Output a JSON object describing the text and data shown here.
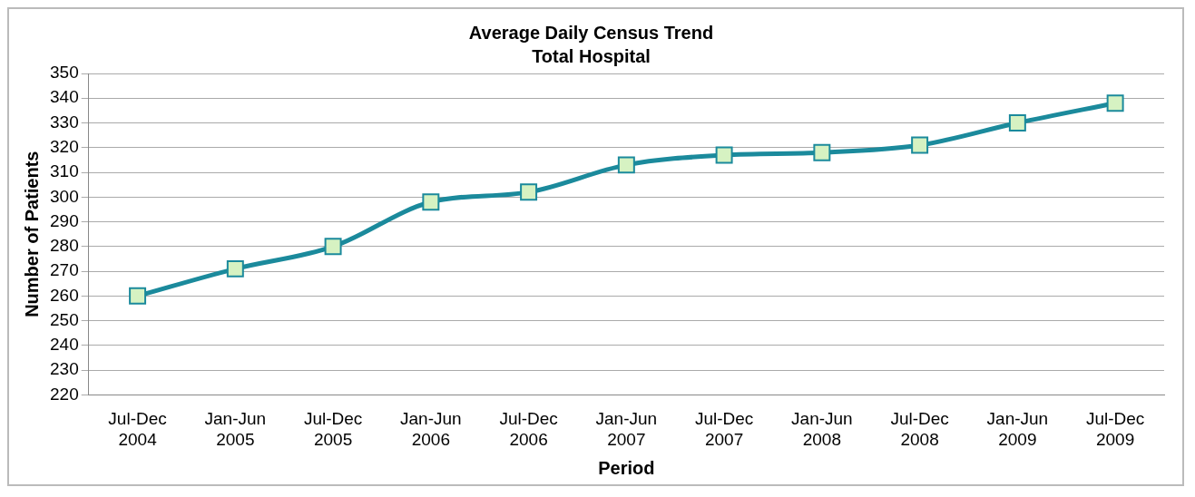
{
  "chart_data": {
    "type": "line",
    "title": "Average Daily Census Trend",
    "subtitle": "Total Hospital",
    "xlabel": "Period",
    "ylabel": "Number of Patients",
    "categories": [
      "Jul-Dec 2004",
      "Jan-Jun 2005",
      "Jul-Dec 2005",
      "Jan-Jun 2006",
      "Jul-Dec 2006",
      "Jan-Jun 2007",
      "Jul-Dec 2007",
      "Jan-Jun 2008",
      "Jul-Dec 2008",
      "Jan-Jun 2009",
      "Jul-Dec 2009"
    ],
    "series": [
      {
        "color": "#1b8a9c",
        "values": [
          260,
          271,
          280,
          298,
          302,
          313,
          317,
          318,
          321,
          330,
          338
        ]
      }
    ],
    "ylim": [
      220,
      350
    ],
    "yticks": [
      220,
      230,
      240,
      250,
      260,
      270,
      280,
      290,
      300,
      310,
      320,
      330,
      340,
      350
    ],
    "grid": "y",
    "legend": false,
    "marker": "square",
    "line_style": "solid"
  }
}
